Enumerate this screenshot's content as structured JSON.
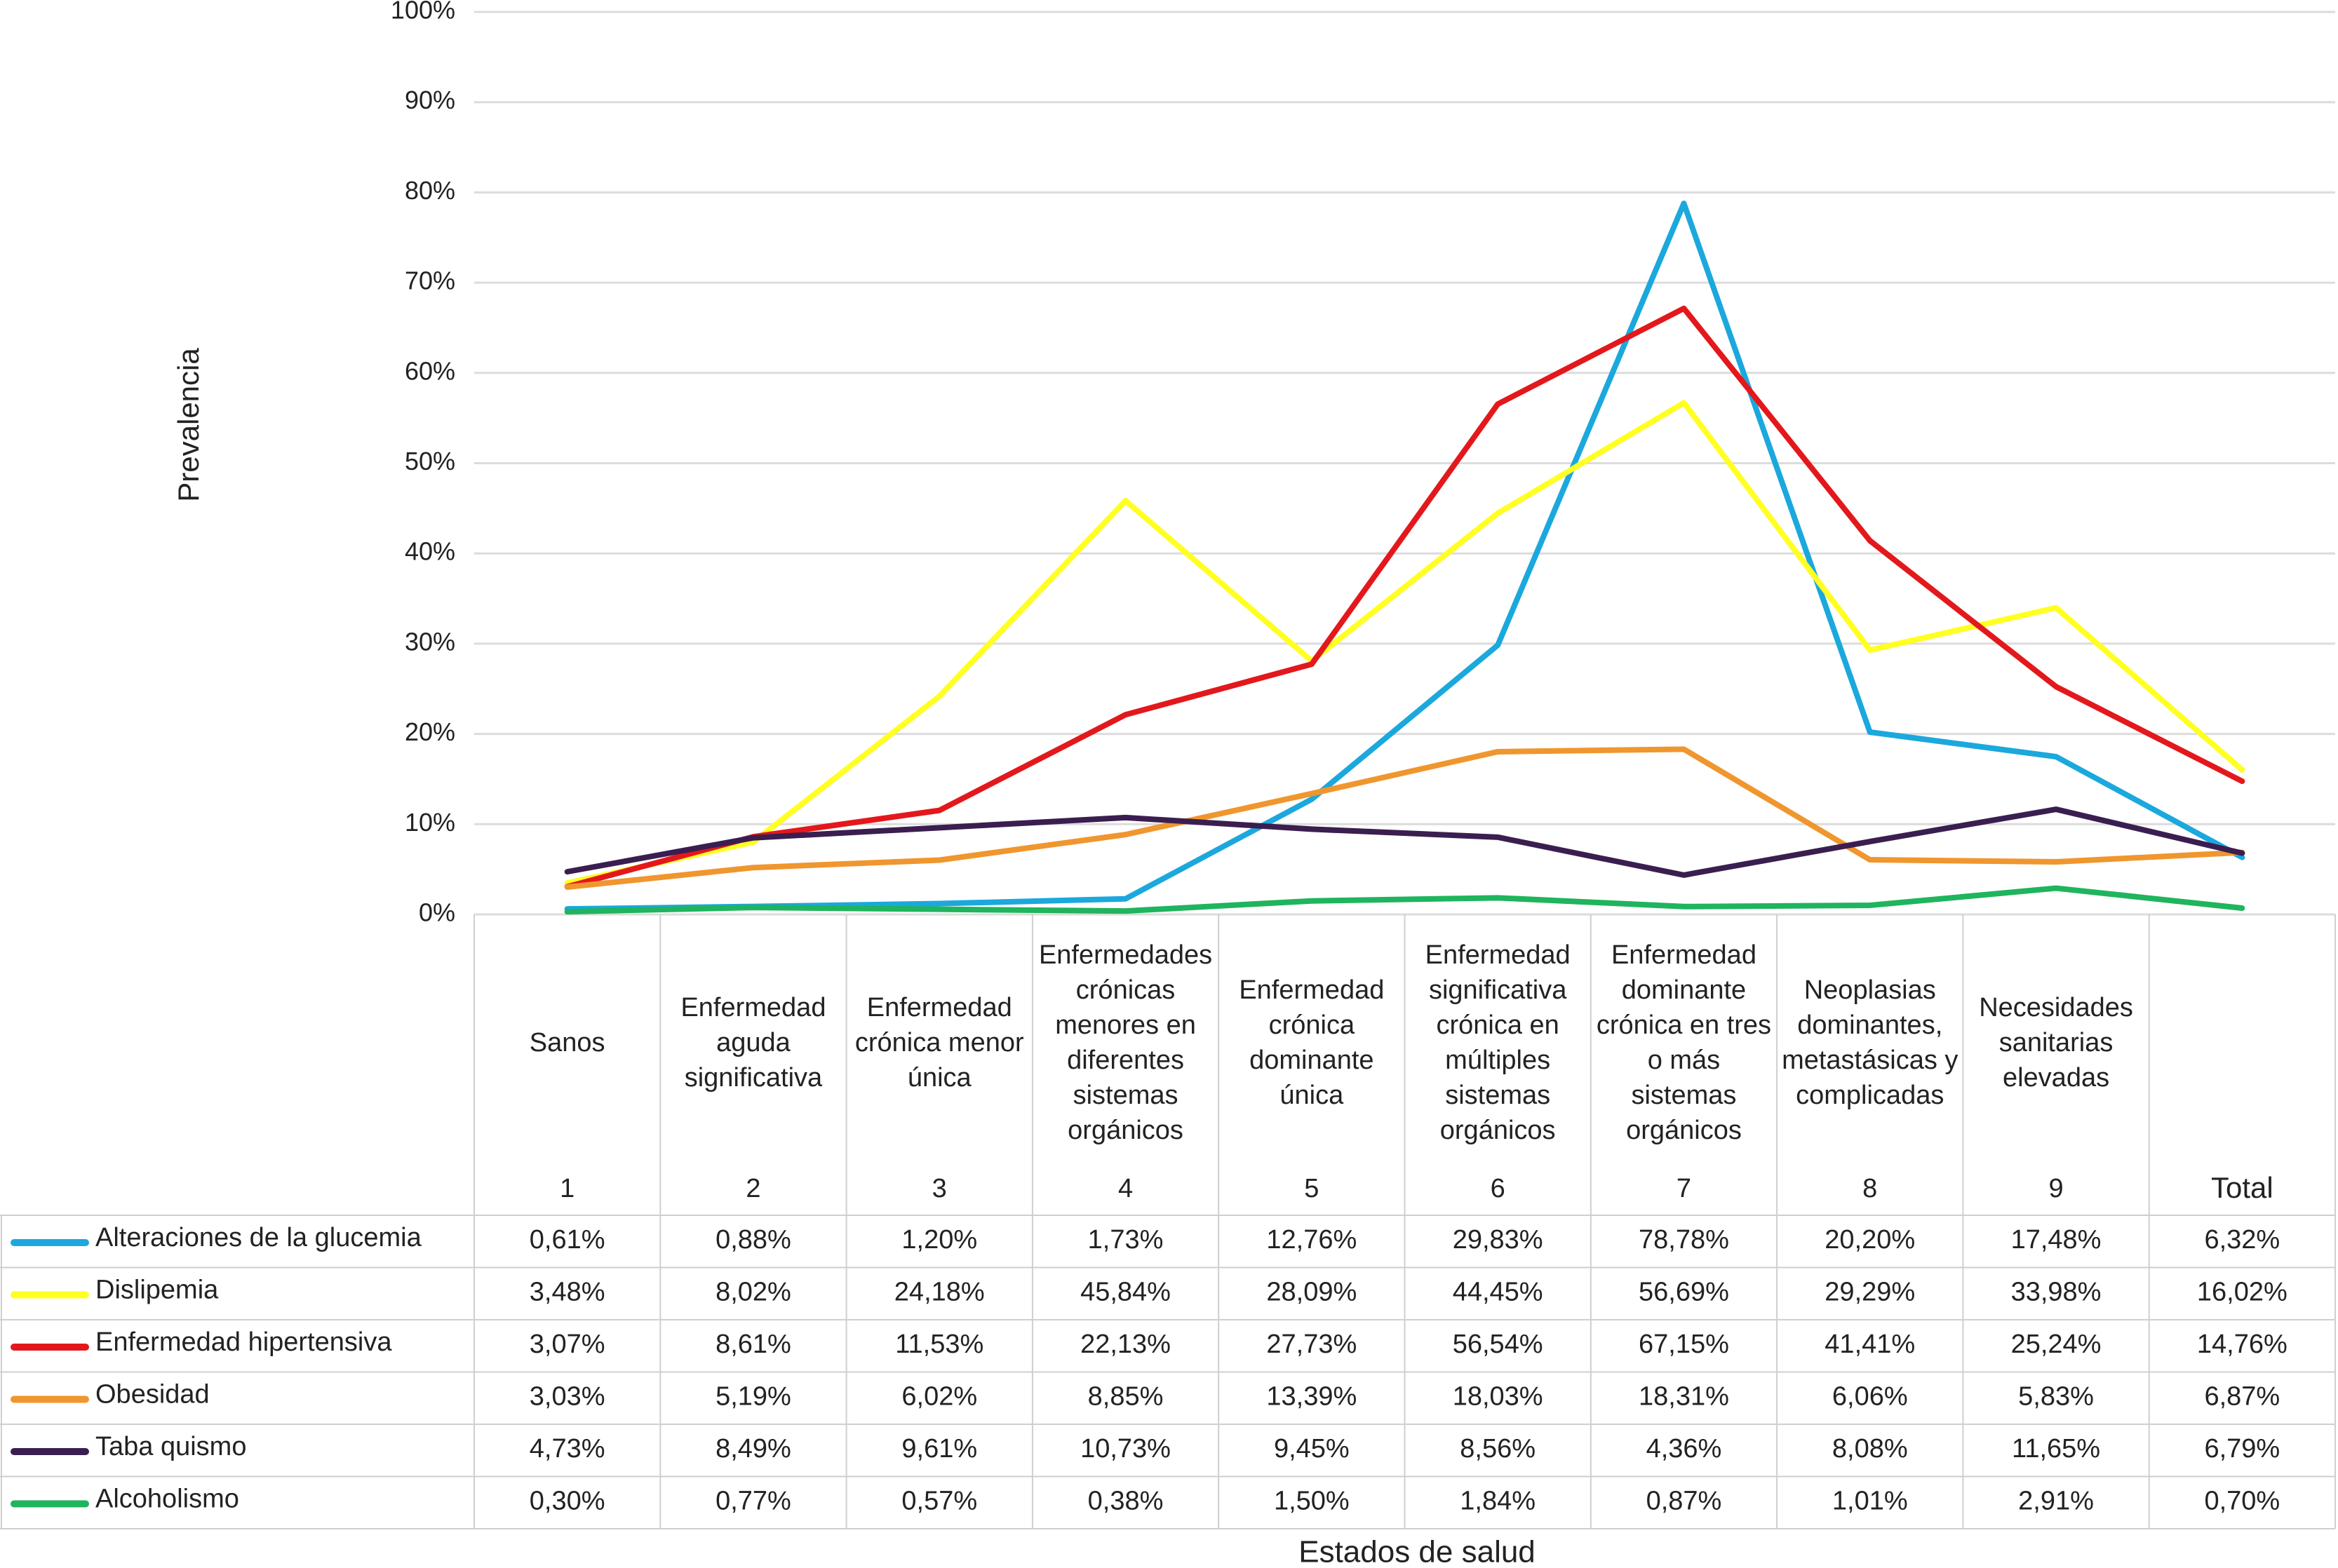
{
  "chart_data": {
    "type": "line",
    "y_label": "Prevalencia",
    "x_label": "Estados de salud",
    "categories": [
      "1",
      "2",
      "3",
      "4",
      "5",
      "6",
      "7",
      "8",
      "9",
      "Total"
    ],
    "category_descriptions": [
      "Sanos",
      "Enfermedad aguda significativa",
      "Enfermedad crónica menor única",
      "Enfermedades crónicas menores en diferentes sistemas orgánicos",
      "Enfermedad crónica dominante única",
      "Enfermedad significativa crónica en múltiples sistemas orgánicos",
      "Enfermedad dominante crónica en tres o más sistemas orgánicos",
      "Neoplasias dominantes, metastásicas y complicadas",
      "Necesidades sanitarias elevadas",
      null
    ],
    "ylim": [
      0,
      100
    ],
    "yticks": [
      {
        "value": 0,
        "label": "0%"
      },
      {
        "value": 10,
        "label": "10%"
      },
      {
        "value": 20,
        "label": "20%"
      },
      {
        "value": 30,
        "label": "30%"
      },
      {
        "value": 40,
        "label": "40%"
      },
      {
        "value": 50,
        "label": "50%"
      },
      {
        "value": 60,
        "label": "60%"
      },
      {
        "value": 70,
        "label": "70%"
      },
      {
        "value": 80,
        "label": "80%"
      },
      {
        "value": 90,
        "label": "90%"
      },
      {
        "value": 100,
        "label": "100%"
      }
    ],
    "grid": true,
    "series": [
      {
        "name": "Alteraciones de la glucemia",
        "color": "#1ba8dd",
        "values": [
          0.61,
          0.88,
          1.2,
          1.73,
          12.76,
          29.83,
          78.78,
          20.2,
          17.48,
          6.32
        ],
        "value_labels": [
          "0,61%",
          "0,88%",
          "1,20%",
          "1,73%",
          "12,76%",
          "29,83%",
          "78,78%",
          "20,20%",
          "17,48%",
          "6,32%"
        ]
      },
      {
        "name": "Dislipemia",
        "color": "#ffff22",
        "values": [
          3.48,
          8.02,
          24.18,
          45.84,
          28.09,
          44.45,
          56.69,
          29.29,
          33.98,
          16.02
        ],
        "value_labels": [
          "3,48%",
          "8,02%",
          "24,18%",
          "45,84%",
          "28,09%",
          "44,45%",
          "56,69%",
          "29,29%",
          "33,98%",
          "16,02%"
        ]
      },
      {
        "name": "Enfermedad hipertensiva",
        "color": "#e3181c",
        "values": [
          3.07,
          8.61,
          11.53,
          22.13,
          27.73,
          56.54,
          67.15,
          41.41,
          25.24,
          14.76
        ],
        "value_labels": [
          "3,07%",
          "8,61%",
          "11,53%",
          "22,13%",
          "27,73%",
          "56,54%",
          "67,15%",
          "41,41%",
          "25,24%",
          "14,76%"
        ]
      },
      {
        "name": "Obesidad",
        "color": "#f0962e",
        "values": [
          3.03,
          5.19,
          6.02,
          8.85,
          13.39,
          18.03,
          18.31,
          6.06,
          5.83,
          6.87
        ],
        "value_labels": [
          "3,03%",
          "5,19%",
          "6,02%",
          "8,85%",
          "13,39%",
          "18,03%",
          "18,31%",
          "6,06%",
          "5,83%",
          "6,87%"
        ]
      },
      {
        "name": "Taba quismo",
        "color": "#3b1e50",
        "values": [
          4.73,
          8.49,
          9.61,
          10.73,
          9.45,
          8.56,
          4.36,
          8.08,
          11.65,
          6.79
        ],
        "value_labels": [
          "4,73%",
          "8,49%",
          "9,61%",
          "10,73%",
          "9,45%",
          "8,56%",
          "4,36%",
          "8,08%",
          "11,65%",
          "6,79%"
        ]
      },
      {
        "name": "Alcoholismo",
        "color": "#1fb45e",
        "values": [
          0.3,
          0.77,
          0.57,
          0.38,
          1.5,
          1.84,
          0.87,
          1.01,
          2.91,
          0.7
        ],
        "value_labels": [
          "0,30%",
          "0,77%",
          "0,57%",
          "0,38%",
          "1,50%",
          "1,84%",
          "0,87%",
          "1,01%",
          "2,91%",
          "0,70%"
        ]
      }
    ]
  }
}
